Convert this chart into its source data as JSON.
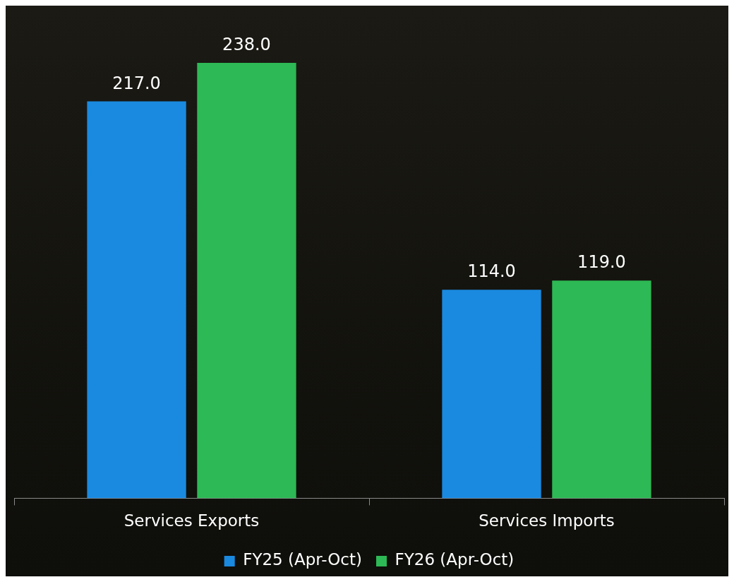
{
  "chart_data": {
    "type": "bar",
    "categories": [
      "Services Exports",
      "Services Imports"
    ],
    "series": [
      {
        "name": "FY25 (Apr-Oct)",
        "color": "#1a8ae0",
        "values": [
          217.0,
          114.0
        ],
        "value_labels": [
          "217.0",
          "114.0"
        ]
      },
      {
        "name": "FY26 (Apr-Oct)",
        "color": "#2db955",
        "values": [
          238.0,
          119.0
        ],
        "value_labels": [
          "238.0",
          "119.0"
        ]
      }
    ],
    "legend": "bottom",
    "grid": false
  }
}
